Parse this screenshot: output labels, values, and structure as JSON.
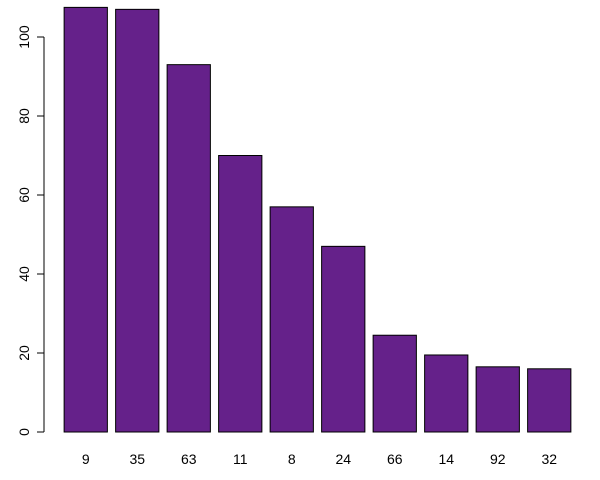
{
  "chart_data": {
    "type": "bar",
    "categories": [
      "9",
      "35",
      "63",
      "11",
      "8",
      "24",
      "66",
      "14",
      "92",
      "32"
    ],
    "values": [
      107.5,
      107,
      93,
      70,
      57,
      47,
      24.5,
      19.5,
      16.5,
      16
    ],
    "title": "",
    "xlabel": "",
    "ylabel": "",
    "ylim": [
      0,
      110
    ],
    "y_ticks": [
      0,
      20,
      40,
      60,
      80,
      100
    ],
    "bar_color": "#65218A",
    "grid": false,
    "legend": "none"
  }
}
